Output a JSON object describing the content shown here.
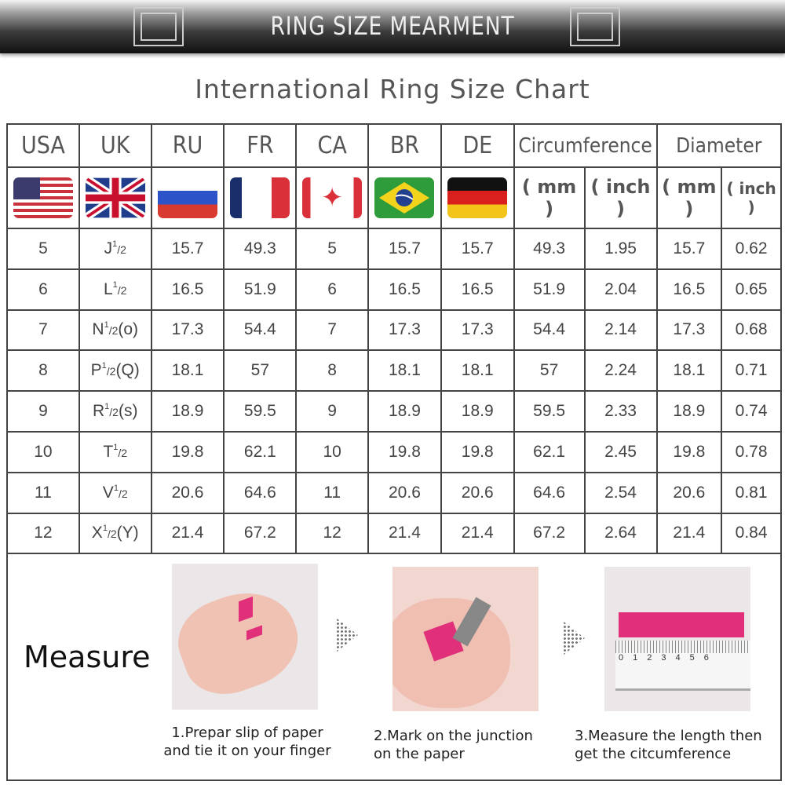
{
  "banner": {
    "title": "RING SIZE MEARMENT"
  },
  "subtitle": "International Ring Size Chart",
  "table": {
    "headers": [
      "USA",
      "UK",
      "RU",
      "FR",
      "CA",
      "BR",
      "DE",
      "Circumference",
      "Diameter"
    ],
    "flags": [
      "usa-flag",
      "uk-flag",
      "russia-flag",
      "france-flag",
      "canada-flag",
      "brazil-flag",
      "germany-flag"
    ],
    "units": [
      "( mm )",
      "( inch )",
      "( mm )",
      "( inch )"
    ],
    "rows": [
      {
        "usa": "5",
        "uk": {
          "base": "J",
          "num": "1",
          "den": "/2",
          "suffix": ""
        },
        "ru": "15.7",
        "fr": "49.3",
        "ca": "5",
        "br": "15.7",
        "de": "15.7",
        "circ_mm": "49.3",
        "circ_in": "1.95",
        "dia_mm": "15.7",
        "dia_in": "0.62"
      },
      {
        "usa": "6",
        "uk": {
          "base": "L",
          "num": "1",
          "den": "/2",
          "suffix": ""
        },
        "ru": "16.5",
        "fr": "51.9",
        "ca": "6",
        "br": "16.5",
        "de": "16.5",
        "circ_mm": "51.9",
        "circ_in": "2.04",
        "dia_mm": "16.5",
        "dia_in": "0.65"
      },
      {
        "usa": "7",
        "uk": {
          "base": "N",
          "num": "1",
          "den": "/2",
          "suffix": "(o)"
        },
        "ru": "17.3",
        "fr": "54.4",
        "ca": "7",
        "br": "17.3",
        "de": "17.3",
        "circ_mm": "54.4",
        "circ_in": "2.14",
        "dia_mm": "17.3",
        "dia_in": "0.68"
      },
      {
        "usa": "8",
        "uk": {
          "base": "P",
          "num": "1",
          "den": "/2",
          "suffix": "(Q)"
        },
        "ru": "18.1",
        "fr": "57",
        "ca": "8",
        "br": "18.1",
        "de": "18.1",
        "circ_mm": "57",
        "circ_in": "2.24",
        "dia_mm": "18.1",
        "dia_in": "0.71"
      },
      {
        "usa": "9",
        "uk": {
          "base": "R",
          "num": "1",
          "den": "/2",
          "suffix": "(s)"
        },
        "ru": "18.9",
        "fr": "59.5",
        "ca": "9",
        "br": "18.9",
        "de": "18.9",
        "circ_mm": "59.5",
        "circ_in": "2.33",
        "dia_mm": "18.9",
        "dia_in": "0.74"
      },
      {
        "usa": "10",
        "uk": {
          "base": "T",
          "num": "1",
          "den": "/2",
          "suffix": ""
        },
        "ru": "19.8",
        "fr": "62.1",
        "ca": "10",
        "br": "19.8",
        "de": "19.8",
        "circ_mm": "62.1",
        "circ_in": "2.45",
        "dia_mm": "19.8",
        "dia_in": "0.78"
      },
      {
        "usa": "11",
        "uk": {
          "base": "V",
          "num": "1",
          "den": "/2",
          "suffix": ""
        },
        "ru": "20.6",
        "fr": "64.6",
        "ca": "11",
        "br": "20.6",
        "de": "20.6",
        "circ_mm": "64.6",
        "circ_in": "2.54",
        "dia_mm": "20.6",
        "dia_in": "0.81"
      },
      {
        "usa": "12",
        "uk": {
          "base": "X",
          "num": "1",
          "den": "/2",
          "suffix": "(Y)"
        },
        "ru": "21.4",
        "fr": "67.2",
        "ca": "12",
        "br": "21.4",
        "de": "21.4",
        "circ_mm": "67.2",
        "circ_in": "2.64",
        "dia_mm": "21.4",
        "dia_in": "0.84"
      }
    ]
  },
  "measure": {
    "label": "Measure",
    "steps": [
      {
        "line1": "1.Prepar slip of paper",
        "line2": "and tie it on your finger"
      },
      {
        "line1": "2.Mark on the junction",
        "line2": "on the paper"
      },
      {
        "line1": "3.Measure the length then",
        "line2": "get the citcumference"
      }
    ],
    "ruler_ticks": [
      "0",
      "1",
      "2",
      "3",
      "4",
      "5",
      "6"
    ],
    "accent": "#e0307a"
  }
}
